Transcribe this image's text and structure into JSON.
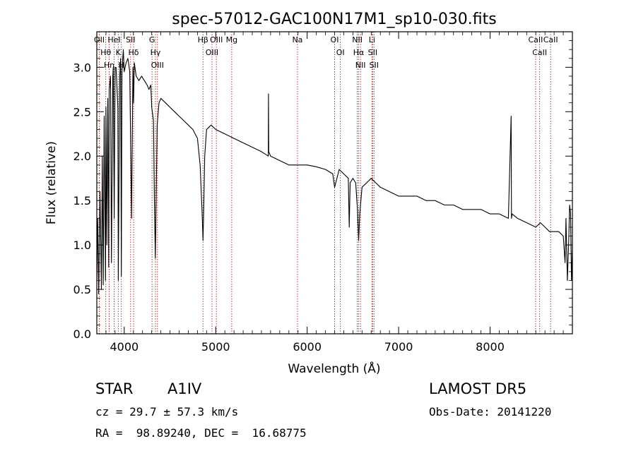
{
  "chart_data": {
    "type": "line",
    "title": "spec-57012-GAC100N17M1_sp10-030.fits",
    "xlabel": "Wavelength (Å)",
    "ylabel": "Flux (relative)",
    "xlim": [
      3700,
      8900
    ],
    "ylim": [
      0.0,
      3.4
    ],
    "xticks": [
      4000,
      5000,
      6000,
      7000,
      8000
    ],
    "yticks": [
      0.0,
      0.5,
      1.0,
      1.5,
      2.0,
      2.5,
      3.0
    ],
    "xtick_labels": [
      "4000",
      "5000",
      "6000",
      "7000",
      "8000"
    ],
    "ytick_labels": [
      "0.0",
      "0.5",
      "1.0",
      "1.5",
      "2.0",
      "2.5",
      "3.0"
    ],
    "grid": false,
    "series": [
      {
        "color": "#000000",
        "x": [
          3700,
          3710,
          3720,
          3735,
          3750,
          3760,
          3770,
          3780,
          3795,
          3800,
          3810,
          3820,
          3830,
          3835,
          3850,
          3860,
          3875,
          3880,
          3890,
          3900,
          3910,
          3930,
          3935,
          3950,
          3960,
          3968,
          3975,
          3990,
          4000,
          4020,
          4040,
          4060,
          4080,
          4095,
          4102,
          4110,
          4130,
          4160,
          4190,
          4220,
          4250,
          4270,
          4290,
          4300,
          4320,
          4330,
          4340,
          4350,
          4360,
          4380,
          4400,
          4450,
          4500,
          4550,
          4600,
          4650,
          4700,
          4750,
          4800,
          4830,
          4850,
          4861,
          4870,
          4880,
          4900,
          4950,
          5000,
          5100,
          5200,
          5300,
          5400,
          5500,
          5575,
          5577,
          5580,
          5600,
          5700,
          5800,
          5900,
          6000,
          6100,
          6200,
          6280,
          6300,
          6350,
          6400,
          6450,
          6460,
          6470,
          6500,
          6530,
          6550,
          6563,
          6575,
          6600,
          6650,
          6700,
          6750,
          6800,
          6900,
          7000,
          7100,
          7200,
          7300,
          7400,
          7500,
          7600,
          7700,
          7800,
          7900,
          8000,
          8100,
          8200,
          8230,
          8234,
          8240,
          8300,
          8400,
          8500,
          8550,
          8600,
          8650,
          8700,
          8750,
          8800,
          8820,
          8830,
          8845,
          8860,
          8870,
          8880,
          8890,
          8900
        ],
        "y": [
          0.6,
          1.3,
          0.45,
          1.6,
          0.5,
          2.0,
          0.55,
          2.45,
          0.6,
          2.55,
          1.0,
          2.65,
          0.75,
          2.75,
          2.9,
          0.8,
          2.9,
          3.0,
          1.3,
          3.0,
          3.0,
          2.55,
          0.6,
          2.9,
          3.1,
          0.65,
          2.95,
          3.2,
          2.95,
          3.05,
          3.1,
          2.95,
          1.3,
          3.0,
          2.6,
          3.05,
          2.9,
          2.85,
          2.9,
          2.85,
          2.8,
          2.75,
          2.8,
          2.55,
          2.4,
          1.5,
          0.85,
          1.6,
          2.35,
          2.6,
          2.65,
          2.6,
          2.55,
          2.5,
          2.45,
          2.4,
          2.35,
          2.3,
          2.2,
          1.9,
          1.4,
          1.05,
          1.45,
          2.0,
          2.3,
          2.35,
          2.3,
          2.25,
          2.2,
          2.15,
          2.1,
          2.05,
          2.0,
          2.7,
          2.05,
          2.0,
          1.95,
          1.9,
          1.9,
          1.9,
          1.88,
          1.85,
          1.8,
          1.65,
          1.85,
          1.8,
          1.75,
          1.2,
          1.7,
          1.75,
          1.7,
          1.4,
          1.05,
          1.35,
          1.65,
          1.7,
          1.75,
          1.7,
          1.65,
          1.6,
          1.55,
          1.55,
          1.55,
          1.5,
          1.5,
          1.45,
          1.45,
          1.4,
          1.4,
          1.4,
          1.35,
          1.35,
          1.3,
          2.45,
          1.3,
          1.35,
          1.3,
          1.25,
          1.2,
          1.25,
          1.2,
          1.15,
          1.15,
          1.15,
          1.1,
          0.8,
          1.3,
          0.6,
          1.05,
          1.45,
          1.35,
          0.6,
          0.95
        ]
      }
    ],
    "lines": [
      {
        "label": "OII",
        "x": 3727
      },
      {
        "label": "Hθ",
        "x": 3798
      },
      {
        "label": "Hη",
        "x": 3835
      },
      {
        "label": "HeI",
        "x": 3889
      },
      {
        "label": "K",
        "x": 3934
      },
      {
        "label": "H",
        "x": 3968
      },
      {
        "label": "SII",
        "x": 4069
      },
      {
        "label": "Hδ",
        "x": 4102
      },
      {
        "label": "G",
        "x": 4304
      },
      {
        "label": "Hγ",
        "x": 4341
      },
      {
        "label": "OIII",
        "x": 4363
      },
      {
        "label": "Hβ",
        "x": 4861
      },
      {
        "label": "OIII",
        "x": 4959
      },
      {
        "label": "OIII",
        "x": 5007
      },
      {
        "label": "Mg",
        "x": 5175
      },
      {
        "label": "Na",
        "x": 5894
      },
      {
        "label": "OI",
        "x": 6300
      },
      {
        "label": "OI",
        "x": 6363
      },
      {
        "label": "NII",
        "x": 6548
      },
      {
        "label": "Hα",
        "x": 6563
      },
      {
        "label": "NII",
        "x": 6583
      },
      {
        "label": "Li",
        "x": 6708
      },
      {
        "label": "SII",
        "x": 6716
      },
      {
        "label": "SII",
        "x": 6731
      },
      {
        "label": "CaII",
        "x": 8498
      },
      {
        "label": "CaII",
        "x": 8542
      },
      {
        "label": "CaII",
        "x": 8662
      }
    ]
  },
  "annotations": {
    "class_label": "STAR",
    "subclass": "A1IV",
    "survey": "LAMOST DR5",
    "cz_text": "cz = 29.7 ± 57.3 km/s",
    "obs_date": "Obs-Date: 20141220",
    "radec": "RA =  98.89240, DEC =  16.68775"
  },
  "colors": {
    "spectrum": "#000000",
    "line_markers": "#b22222",
    "axes": "#000000"
  }
}
